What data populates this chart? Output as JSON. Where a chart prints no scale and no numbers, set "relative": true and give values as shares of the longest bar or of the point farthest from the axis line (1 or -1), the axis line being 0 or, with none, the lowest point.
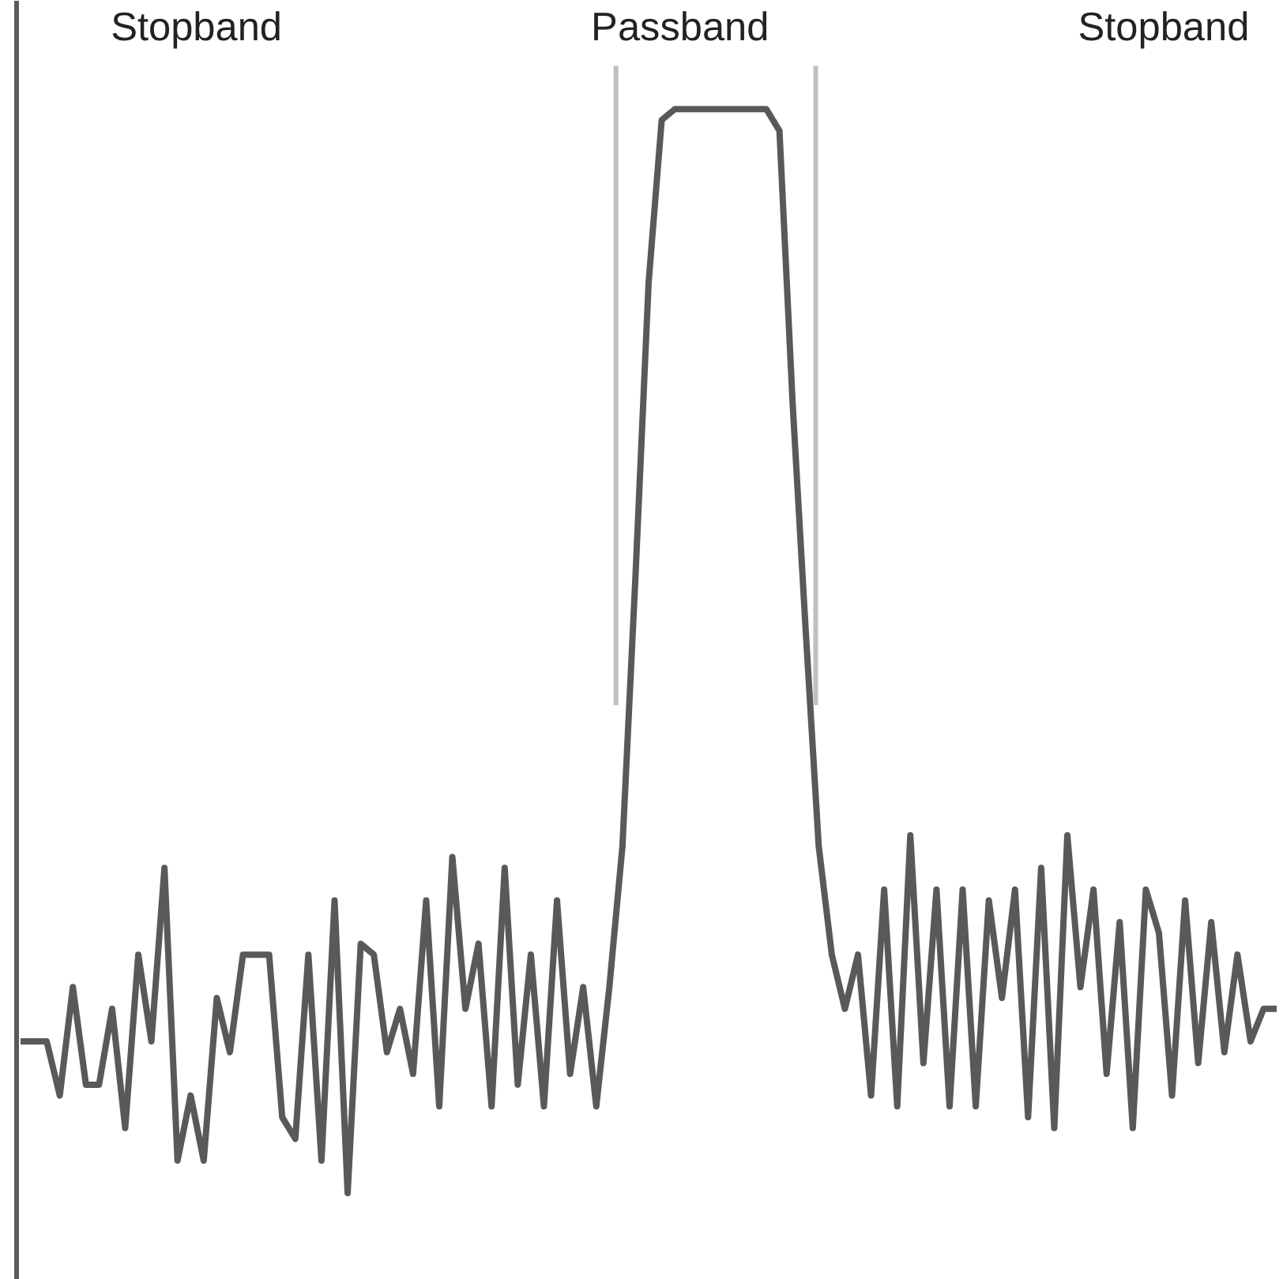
{
  "chart_data": {
    "type": "line",
    "relative": true,
    "categories": [
      null,
      null,
      null,
      null,
      null,
      null,
      null,
      null,
      null,
      null,
      null,
      null,
      null,
      null,
      null,
      null,
      null,
      null,
      null,
      null,
      null,
      null,
      null,
      null,
      null,
      null,
      null,
      null,
      null,
      null,
      null,
      null,
      null,
      null,
      null,
      null,
      null,
      null,
      null,
      null,
      null,
      null,
      null,
      null,
      null,
      null,
      null,
      null,
      null,
      null,
      null,
      null,
      null,
      null,
      null,
      null,
      null,
      null,
      null,
      null,
      null,
      null,
      null,
      null,
      null,
      null,
      null,
      null,
      null,
      null,
      null,
      null,
      null,
      null,
      null,
      null,
      null,
      null,
      null,
      null,
      null,
      null,
      null,
      null,
      null,
      null,
      null,
      null,
      null,
      null,
      null,
      null,
      null,
      null,
      null,
      null,
      null
    ],
    "series": [
      {
        "color": "#58595b",
        "values": [
          0.14,
          0.14,
          0.14,
          0.09,
          0.19,
          0.1,
          0.1,
          0.17,
          0.06,
          0.22,
          0.14,
          0.3,
          0.03,
          0.09,
          0.03,
          0.18,
          0.13,
          0.22,
          0.22,
          0.22,
          0.07,
          0.05,
          0.22,
          0.03,
          0.27,
          0.0,
          0.23,
          0.22,
          0.13,
          0.17,
          0.11,
          0.27,
          0.08,
          0.31,
          0.17,
          0.23,
          0.08,
          0.3,
          0.1,
          0.22,
          0.08,
          0.27,
          0.11,
          0.19,
          0.08,
          0.19,
          0.32,
          0.57,
          0.84,
          0.99,
          1.0,
          1.0,
          1.0,
          1.0,
          1.0,
          1.0,
          1.0,
          1.0,
          0.98,
          0.73,
          0.52,
          0.32,
          0.22,
          0.17,
          0.22,
          0.09,
          0.28,
          0.08,
          0.33,
          0.12,
          0.28,
          0.08,
          0.28,
          0.08,
          0.27,
          0.18,
          0.28,
          0.07,
          0.3,
          0.06,
          0.33,
          0.19,
          0.28,
          0.11,
          0.25,
          0.06,
          0.28,
          0.24,
          0.09,
          0.27,
          0.12,
          0.25,
          0.13,
          0.22,
          0.14,
          0.17,
          0.17
        ]
      }
    ],
    "annotations": [
      "Stopband",
      "Passband",
      "Stopband"
    ]
  }
}
